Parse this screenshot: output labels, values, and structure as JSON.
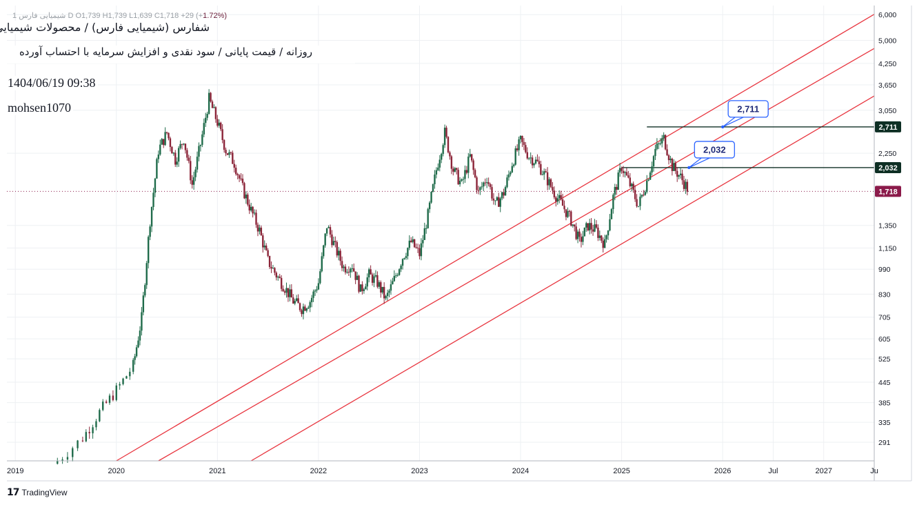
{
  "header": {
    "ohlc_text": "1 شیمیایی فارس D  O1,739  H1,739  L1,639  C1,718  +29 (+",
    "ohlc_change": "1.72%)",
    "title": "شفارس (شیمیایی فارس) / محصولات شیمیایی",
    "subtitle": "روزانه / قیمت پایانی / سود نقدی و افزایش سرمایه با احتساب آورده",
    "datetime": "1404/06/19 09:38",
    "author": "mohsen1070"
  },
  "footer": {
    "brand": "TradingView",
    "brand_mark": "17"
  },
  "colors": {
    "channel": "#e8353f",
    "level": "#0e2f24",
    "current_price": "#8b1a4a",
    "callout_border": "#2962ff",
    "callout_text": "#1e2a78",
    "grid": "#eef0f3",
    "axis_text": "#131722",
    "candle_up": "#1f6b4a",
    "candle_down": "#8b2438"
  },
  "chart_data": {
    "type": "candlestick",
    "scale": "log",
    "x_tick_labels": [
      "2019",
      "2020",
      "2021",
      "2022",
      "2023",
      "2024",
      "2025",
      "2026",
      "Jul",
      "2027",
      "Ju"
    ],
    "y_tick_labels": [
      "6,000",
      "5,000",
      "4,250",
      "3,650",
      "3,050",
      "2,250",
      "1,350",
      "1,150",
      "990",
      "830",
      "705",
      "605",
      "525",
      "445",
      "385",
      "335",
      "291"
    ],
    "y_tick_values": [
      6000,
      5000,
      4250,
      3650,
      3050,
      2250,
      1350,
      1150,
      990,
      830,
      705,
      605,
      525,
      445,
      385,
      335,
      291
    ],
    "ylim": [
      255,
      6400
    ],
    "price_path": [
      [
        "2019-06",
        255
      ],
      [
        "2019-09",
        300
      ],
      [
        "2019-11",
        360
      ],
      [
        "2020-01",
        420
      ],
      [
        "2020-03",
        500
      ],
      [
        "2020-04",
        700
      ],
      [
        "2020-05",
        1400
      ],
      [
        "2020-06",
        2300
      ],
      [
        "2020-07",
        2600
      ],
      [
        "2020-08",
        2150
      ],
      [
        "2020-09",
        2500
      ],
      [
        "2020-10",
        1800
      ],
      [
        "2020-11",
        2400
      ],
      [
        "2020-12",
        3300
      ],
      [
        "2021-01",
        2800
      ],
      [
        "2021-02",
        2300
      ],
      [
        "2021-03",
        2100
      ],
      [
        "2021-04",
        1750
      ],
      [
        "2021-05",
        1500
      ],
      [
        "2021-06",
        1300
      ],
      [
        "2021-07",
        1050
      ],
      [
        "2021-08",
        950
      ],
      [
        "2021-09",
        870
      ],
      [
        "2021-10",
        790
      ],
      [
        "2021-11",
        750
      ],
      [
        "2021-12",
        790
      ],
      [
        "2022-01",
        900
      ],
      [
        "2022-02",
        1350
      ],
      [
        "2022-03",
        1150
      ],
      [
        "2022-04",
        1000
      ],
      [
        "2022-05",
        1020
      ],
      [
        "2022-06",
        850
      ],
      [
        "2022-07",
        950
      ],
      [
        "2022-08",
        900
      ],
      [
        "2022-09",
        800
      ],
      [
        "2022-10",
        920
      ],
      [
        "2022-11",
        1080
      ],
      [
        "2022-12",
        1200
      ],
      [
        "2023-01",
        1100
      ],
      [
        "2023-02",
        1450
      ],
      [
        "2023-03",
        2000
      ],
      [
        "2023-04",
        2600
      ],
      [
        "2023-05",
        2000
      ],
      [
        "2023-06",
        1800
      ],
      [
        "2023-07",
        2200
      ],
      [
        "2023-08",
        1700
      ],
      [
        "2023-09",
        1900
      ],
      [
        "2023-10",
        1550
      ],
      [
        "2023-11",
        1700
      ],
      [
        "2023-12",
        2100
      ],
      [
        "2024-01",
        2450
      ],
      [
        "2024-02",
        2200
      ],
      [
        "2024-03",
        2100
      ],
      [
        "2024-04",
        1900
      ],
      [
        "2024-05",
        1700
      ],
      [
        "2024-06",
        1550
      ],
      [
        "2024-07",
        1400
      ],
      [
        "2024-08",
        1200
      ],
      [
        "2024-09",
        1350
      ],
      [
        "2024-10",
        1300
      ],
      [
        "2024-11",
        1180
      ],
      [
        "2024-12",
        1650
      ],
      [
        "2025-01",
        2050
      ],
      [
        "2025-02",
        1800
      ],
      [
        "2025-03",
        1550
      ],
      [
        "2025-04",
        1850
      ],
      [
        "2025-05",
        2300
      ],
      [
        "2025-06",
        2500
      ],
      [
        "2025-07",
        2050
      ],
      [
        "2025-08",
        1900
      ],
      [
        "2025-09",
        1718
      ]
    ],
    "channel_lines": [
      {
        "name": "upper",
        "points": [
          [
            "2020-01",
            255
          ],
          [
            "2025-06",
            2500
          ]
        ]
      },
      {
        "name": "middle",
        "points": [
          [
            "2020-06",
            255
          ],
          [
            "2025-12",
            2460
          ]
        ]
      },
      {
        "name": "lower",
        "points": [
          [
            "2021-05",
            255
          ],
          [
            "2026-09",
            2380
          ]
        ]
      }
    ],
    "horizontal_levels": [
      {
        "value": 2711,
        "label": "2,711",
        "from": "2025-04"
      },
      {
        "value": 2032,
        "label": "2,032",
        "from": "2025-01"
      }
    ],
    "current_price": {
      "value": 1718,
      "label": "1,718"
    },
    "callouts": [
      {
        "label": "2,711",
        "anchor_x": "2026-01",
        "anchor_y": 2711
      },
      {
        "label": "2,032",
        "anchor_x": "2025-09",
        "anchor_y": 2032
      }
    ],
    "grid": true
  }
}
